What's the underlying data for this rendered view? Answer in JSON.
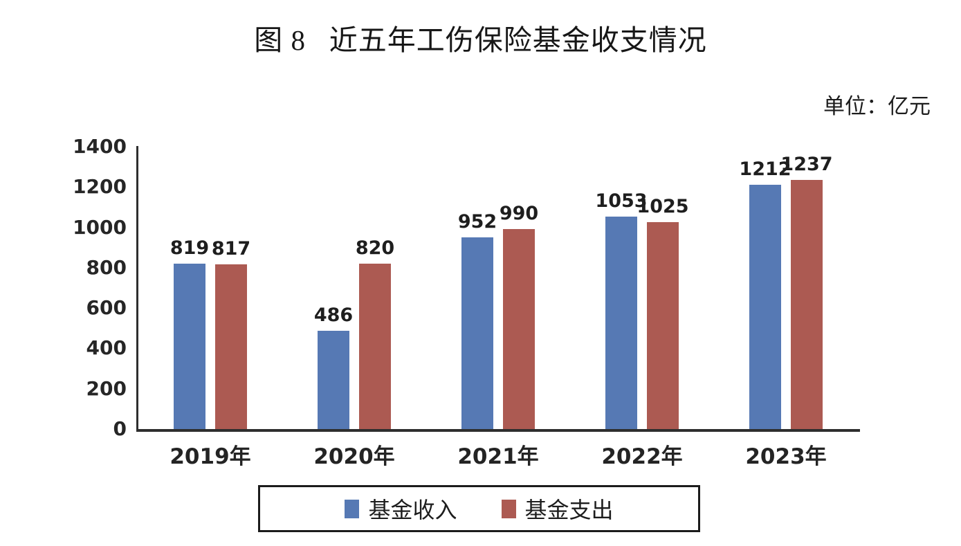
{
  "title": "图 8   近五年工伤保险基金收支情况",
  "unit_label": "单位：亿元",
  "colors": {
    "income": "#5679B4",
    "expenditure": "#AC5A52",
    "axis": "#2e2e2e",
    "label_text": "#1e1e1e"
  },
  "legend": {
    "income_label": "基金收入",
    "expenditure_label": "基金支出"
  },
  "chart_data": {
    "type": "bar",
    "categories": [
      "2019年",
      "2020年",
      "2021年",
      "2022年",
      "2023年"
    ],
    "series": [
      {
        "name": "基金收入",
        "color_key": "income",
        "values": [
          819,
          486,
          952,
          1053,
          1212
        ]
      },
      {
        "name": "基金支出",
        "color_key": "expenditure",
        "values": [
          817,
          820,
          990,
          1025,
          1237
        ]
      }
    ],
    "title": "图 8   近五年工伤保险基金收支情况",
    "unit": "亿元",
    "xlabel": "",
    "ylabel": "",
    "ylim": [
      0,
      1400
    ],
    "yticks": [
      0,
      200,
      400,
      600,
      800,
      1000,
      1200,
      1400
    ],
    "grid": false,
    "legend_position": "bottom",
    "bar_value_labels": true
  }
}
